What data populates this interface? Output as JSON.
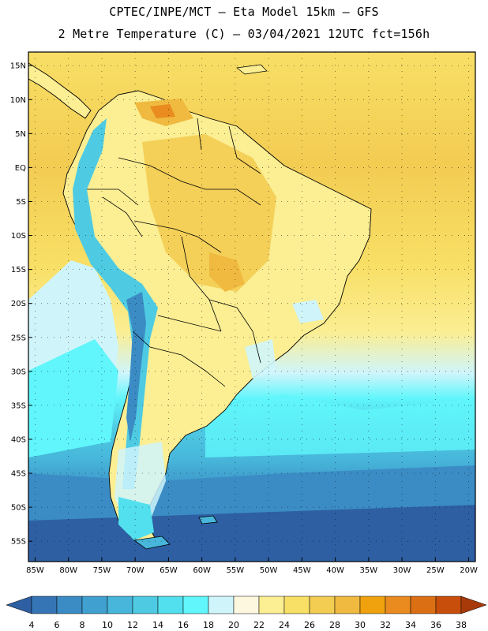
{
  "header": {
    "line1": "CPTEC/INPE/MCT –  Eta Model 15km – GFS",
    "line2": "2 Metre Temperature (C) – 03/04/2021 12UTC fct=156h"
  },
  "map": {
    "lon_range": [
      -86,
      -19
    ],
    "lat_range": [
      -58,
      17
    ],
    "lat_ticks": [
      "15N",
      "10N",
      "5N",
      "EQ",
      "5S",
      "10S",
      "15S",
      "20S",
      "25S",
      "30S",
      "35S",
      "40S",
      "45S",
      "50S",
      "55S"
    ],
    "lon_ticks": [
      "85W",
      "80W",
      "75W",
      "70W",
      "65W",
      "60W",
      "55W",
      "50W",
      "45W",
      "40W",
      "35W",
      "30W",
      "25W",
      "20W"
    ]
  },
  "colorbar": {
    "levels": [
      "4",
      "6",
      "8",
      "10",
      "12",
      "14",
      "16",
      "18",
      "20",
      "22",
      "24",
      "26",
      "28",
      "30",
      "32",
      "34",
      "36",
      "38"
    ],
    "colors": [
      "#2e5fa3",
      "#3575b5",
      "#3b8cc4",
      "#40a0cf",
      "#47b6da",
      "#4ecbe3",
      "#52dfee",
      "#60f6fb",
      "#cff5fb",
      "#fdf7df",
      "#fbee93",
      "#f8df66",
      "#f3cc52",
      "#efba3f",
      "#f0a20e",
      "#e98b1f",
      "#db6f14",
      "#c84e0c",
      "#a83a09"
    ]
  }
}
